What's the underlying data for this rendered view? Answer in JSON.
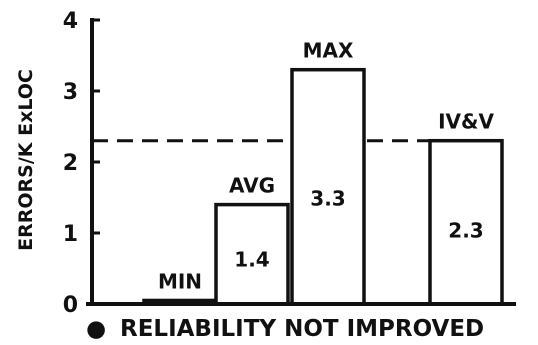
{
  "chart_data": {
    "type": "bar",
    "title": "",
    "xlabel": "",
    "ylabel": "ERRORS/K ExLOC",
    "ylim": [
      0,
      4
    ],
    "yticks": [
      "0",
      "1",
      "2",
      "3",
      "4"
    ],
    "categories": [
      "MIN",
      "AVG",
      "MAX",
      "IV&V"
    ],
    "values": [
      0.05,
      1.4,
      3.3,
      2.3
    ],
    "value_labels": [
      "",
      "1.4",
      "3.3",
      "2.3"
    ],
    "reference_line": {
      "value": 2.3,
      "style": "dashed"
    },
    "grid": false,
    "legend": "none"
  },
  "footer": {
    "bullet": "●",
    "text": "RELIABILITY NOT IMPROVED"
  },
  "colors": {
    "ink": "#111111",
    "background": "#ffffff"
  }
}
